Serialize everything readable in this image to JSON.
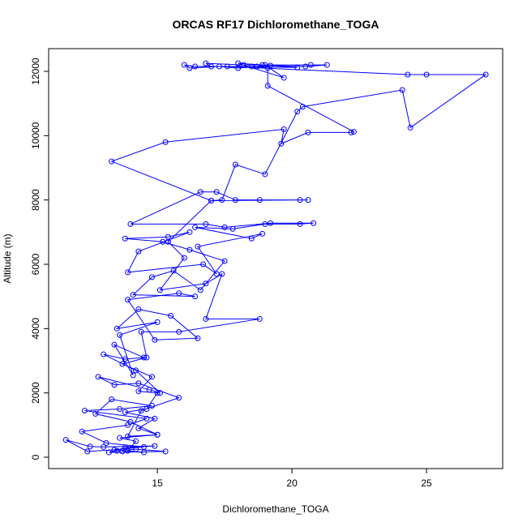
{
  "chart_data": {
    "type": "line",
    "title": "ORCAS RF17 Dichloromethane_TOGA",
    "x_label": "Dichloromethane_TOGA",
    "y_label": "Altitude (m)",
    "x": [
      13.5,
      14.2,
      15.3,
      13.2,
      13.8,
      14.9,
      13.0,
      12.5,
      11.6,
      12.4,
      13.4,
      14.5,
      13.1,
      12.2,
      13.9,
      14.6,
      12.3,
      13.6,
      14.8,
      13.3,
      12.7,
      14.0,
      15.0,
      13.9,
      14.4,
      15.8,
      14.3,
      13.4,
      12.8,
      14.7,
      15.1,
      14.2,
      13.0,
      13.8,
      14.5,
      13.4,
      14.1,
      13.6,
      15.0,
      13.5,
      14.3,
      15.5,
      16.5,
      14.9,
      13.9,
      15.8,
      16.4,
      14.1,
      14.8,
      15.6,
      16.6,
      17.5,
      16.2,
      15.2,
      13.8,
      15.4,
      16.2,
      14.3,
      13.9,
      16.7,
      17.2,
      16.5,
      18.9,
      18.5,
      16.4,
      17.8,
      19.0,
      20.3,
      20.8,
      19.2,
      17.5,
      16.8,
      14.0,
      16.6,
      17.2,
      17.9,
      18.8,
      20.3,
      20.6,
      17.0,
      13.3,
      15.3,
      19.7,
      19.6,
      20.6,
      22.2,
      22.3,
      19.1,
      19.1,
      18.5,
      16.4,
      16.0,
      16.2,
      17.3,
      18.0,
      19.2,
      20.5,
      21.3,
      20.7,
      18.2,
      16.8,
      17.0,
      18.7,
      19.0,
      19.7,
      18.0,
      18.9,
      20.2,
      17.6,
      24.3,
      25.0,
      27.2,
      24.4,
      24.1,
      20.4,
      20.2,
      19.0,
      17.9,
      17.4,
      17.0,
      15.4,
      16.0,
      15.1,
      16.8,
      17.4,
      16.8,
      18.8,
      15.8,
      14.4,
      14.6,
      13.7,
      14.8,
      14.3,
      15.0,
      14.6,
      13.8,
      14.9,
      14.3,
      15.0,
      13.6,
      14.2,
      13.9,
      14.5,
      13.7
    ],
    "values": [
      200,
      250,
      180,
      150,
      300,
      350,
      320,
      330,
      540,
      180,
      230,
      320,
      440,
      800,
      1000,
      1200,
      1450,
      1500,
      1600,
      1800,
      1350,
      1100,
      700,
      650,
      1450,
      1850,
      2300,
      2250,
      2500,
      2100,
      2000,
      2700,
      3200,
      3050,
      3100,
      3500,
      2550,
      3800,
      4200,
      4000,
      4600,
      4400,
      3700,
      3650,
      4900,
      5100,
      5000,
      5050,
      5600,
      5800,
      5200,
      6100,
      6450,
      6700,
      6800,
      6850,
      7000,
      6400,
      5750,
      6000,
      5700,
      6550,
      6950,
      6800,
      7150,
      7100,
      7250,
      7250,
      7280,
      7280,
      7150,
      7250,
      7250,
      8250,
      8250,
      8000,
      8000,
      8000,
      8000,
      7980,
      9200,
      9800,
      10200,
      9750,
      10100,
      10100,
      10120,
      11550,
      12100,
      12150,
      12150,
      12200,
      12100,
      12150,
      12100,
      12180,
      12150,
      12200,
      12200,
      12200,
      12250,
      12150,
      12150,
      12200,
      11800,
      12250,
      12200,
      12120,
      12150,
      11900,
      11900,
      11900,
      10250,
      11420,
      10900,
      10750,
      8800,
      9100,
      8000,
      7980,
      6700,
      6200,
      5200,
      5400,
      5700,
      4300,
      4300,
      3900,
      3900,
      3100,
      2900,
      2500,
      2050,
      2000,
      1500,
      1400,
      1200,
      900,
      700,
      600,
      500,
      200,
      150,
      180
    ],
    "color": "#0000ff",
    "xlim": [
      10.96,
      27.83
    ],
    "ylim": [
      -353,
      12706
    ],
    "xticks": [
      15,
      20,
      25
    ],
    "yticks": [
      0,
      2000,
      4000,
      6000,
      8000,
      10000,
      12000
    ]
  }
}
